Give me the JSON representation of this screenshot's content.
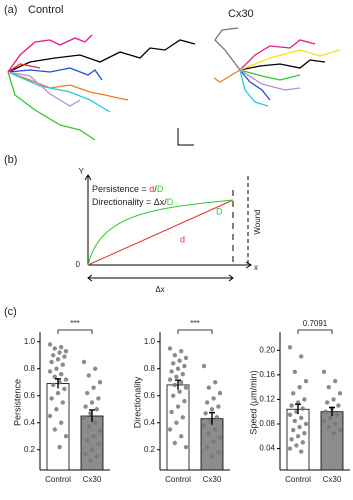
{
  "panel_a": {
    "label": "(a)",
    "left_title": "Control",
    "right_title": "Cx30"
  },
  "panel_b": {
    "label": "(b)",
    "y_axis": "Y",
    "x_axis": "x",
    "origin": "0",
    "persistence_formula": [
      "Persistence = ",
      "d",
      "/",
      "D"
    ],
    "directionality_formula": [
      "Directionality = Δx/",
      "D"
    ],
    "curve_label": "D",
    "line_label": "d",
    "wound_label": "Wound",
    "dx_label": "Δx"
  },
  "panel_c": {
    "label": "(c)"
  },
  "chart_data": [
    {
      "type": "bar",
      "ylabel": "Persistence",
      "categories": [
        "Control",
        "Cx30"
      ],
      "values": [
        0.69,
        0.45
      ],
      "errors": [
        0.035,
        0.045
      ],
      "colors": [
        "#ffffff",
        "#8c8c8c"
      ],
      "annotation": "***",
      "points": [
        [
          0.98,
          0.96,
          0.95,
          0.93,
          0.92,
          0.9,
          0.89,
          0.87,
          0.85,
          0.83,
          0.8,
          0.78,
          0.76,
          0.74,
          0.72,
          0.7,
          0.68,
          0.65,
          0.62,
          0.58,
          0.55,
          0.5,
          0.45,
          0.4,
          0.35,
          0.3,
          0.22
        ],
        [
          0.85,
          0.8,
          0.75,
          0.7,
          0.66,
          0.62,
          0.58,
          0.55,
          0.52,
          0.5,
          0.47,
          0.44,
          0.4,
          0.37,
          0.34,
          0.3,
          0.27,
          0.24,
          0.2,
          0.17,
          0.15,
          0.12
        ]
      ],
      "ylim": [
        0.05,
        1.05
      ],
      "yticks": [
        0.2,
        0.4,
        0.6,
        0.8,
        {
          "value": 1,
          "label": "1.0"
        }
      ]
    },
    {
      "type": "bar",
      "ylabel": "Directionality",
      "categories": [
        "Control",
        "Cx30"
      ],
      "values": [
        0.68,
        0.43
      ],
      "errors": [
        0.035,
        0.045
      ],
      "colors": [
        "#ffffff",
        "#8c8c8c"
      ],
      "annotation": "***",
      "points": [
        [
          0.95,
          0.93,
          0.9,
          0.88,
          0.86,
          0.84,
          0.82,
          0.8,
          0.78,
          0.76,
          0.74,
          0.72,
          0.7,
          0.68,
          0.66,
          0.63,
          0.6,
          0.56,
          0.52,
          0.48,
          0.44,
          0.4,
          0.35,
          0.3,
          0.25,
          0.22
        ],
        [
          0.82,
          0.7,
          0.66,
          0.62,
          0.58,
          0.55,
          0.52,
          0.5,
          0.47,
          0.44,
          0.41,
          0.38,
          0.35,
          0.32,
          0.29,
          0.26,
          0.22,
          0.18,
          0.15
        ]
      ],
      "ylim": [
        0.05,
        1.05
      ],
      "yticks": [
        0.2,
        0.4,
        0.6,
        0.8,
        {
          "value": 1,
          "label": "1.0"
        }
      ]
    },
    {
      "type": "bar",
      "ylabel": "Speed (μm/min)",
      "categories": [
        "Control",
        "Cx30"
      ],
      "values": [
        0.104,
        0.1
      ],
      "errors": [
        0.008,
        0.007
      ],
      "colors": [
        "#ffffff",
        "#8c8c8c"
      ],
      "annotation": "0.7091",
      "points": [
        [
          0.205,
          0.19,
          0.165,
          0.15,
          0.14,
          0.13,
          0.12,
          0.115,
          0.11,
          0.105,
          0.1,
          0.095,
          0.09,
          0.085,
          0.08,
          0.075,
          0.07,
          0.065,
          0.06,
          0.055,
          0.05,
          0.045,
          0.04,
          0.035
        ],
        [
          0.165,
          0.15,
          0.14,
          0.13,
          0.12,
          0.115,
          0.11,
          0.105,
          0.1,
          0.095,
          0.09,
          0.085,
          0.08,
          0.075,
          0.07,
          0.065
        ]
      ],
      "ylim": [
        0.005,
        0.225
      ],
      "yticks": [
        0.04,
        0.08,
        0.12,
        0.16,
        {
          "value": 0.2,
          "label": "0.20"
        }
      ]
    }
  ]
}
